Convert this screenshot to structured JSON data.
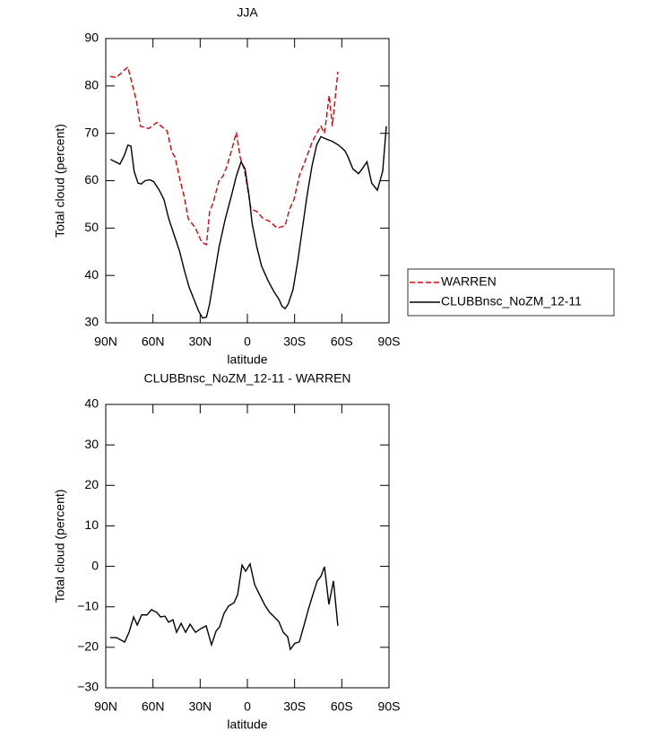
{
  "chart_data": [
    {
      "type": "line",
      "title": "JJA",
      "xlabel": "latitude",
      "ylabel": "Total cloud (percent)",
      "xlim": [
        90,
        -90
      ],
      "xticks": [
        {
          "value": 90,
          "label": "90N"
        },
        {
          "value": 60,
          "label": "60N"
        },
        {
          "value": 30,
          "label": "30N"
        },
        0,
        {
          "value": -30,
          "label": "30S"
        },
        {
          "value": -60,
          "label": "60S"
        },
        {
          "value": -90,
          "label": "90S"
        }
      ],
      "ylim": [
        30,
        90
      ],
      "yticks": [
        30,
        40,
        50,
        60,
        70,
        80,
        90
      ],
      "legend": "right",
      "series": [
        {
          "name": "WARREN",
          "color": "#e00000",
          "linestyle": "dashed",
          "x": [
            87.2,
            83.2,
            76,
            70.6,
            68,
            62.7,
            57.5,
            53,
            51,
            48,
            46,
            42.7,
            40.4,
            37.6,
            33,
            29,
            26,
            24,
            21.6,
            18,
            15.4,
            13,
            10,
            7,
            4.6,
            1.7,
            -2.3,
            -6,
            -10,
            -13.7,
            -19,
            -24,
            -26.8,
            -29.6,
            -33,
            -36.5,
            -41,
            -44,
            -46.7,
            -49,
            -52,
            -54,
            -57.5
          ],
          "values": [
            82,
            81.8,
            84,
            77,
            71.5,
            71,
            72.3,
            71,
            70.5,
            66,
            65,
            60,
            57,
            52,
            50,
            47,
            46.5,
            53.5,
            55.5,
            60,
            61,
            63,
            66.5,
            70.2,
            65,
            62,
            54,
            53.5,
            52,
            51.5,
            50,
            50.5,
            54,
            56,
            61,
            64,
            68,
            70,
            71.5,
            70,
            78,
            71.5,
            83
          ]
        },
        {
          "name": "CLUBBnsc_NoZM_12-11",
          "color": "#000000",
          "linestyle": "solid",
          "x": [
            87,
            84,
            81,
            78,
            76,
            74,
            72,
            69.5,
            67.5,
            65,
            62,
            59.5,
            56,
            53,
            50,
            46,
            43,
            40,
            37,
            34,
            31,
            28.5,
            26,
            24,
            21,
            18,
            14,
            10,
            7,
            4,
            1.5,
            -1,
            -3,
            -6,
            -9,
            -13,
            -17,
            -20,
            -22,
            -24,
            -26,
            -29,
            -32,
            -35,
            -38,
            -41,
            -44,
            -46.7,
            -50,
            -54,
            -58,
            -62,
            -64,
            -67,
            -70.6,
            -73,
            -76,
            -79,
            -82.6,
            -86,
            -88.3
          ],
          "values": [
            64.5,
            64,
            63.5,
            65.5,
            67.5,
            67.3,
            62,
            59.5,
            59.3,
            60,
            60.2,
            59.8,
            58,
            56,
            52,
            48,
            45,
            41,
            37.5,
            35,
            32.5,
            31,
            31.2,
            34,
            40,
            46,
            52,
            57,
            61,
            64,
            62.5,
            57,
            51,
            46,
            42,
            39,
            36.5,
            35,
            33.5,
            33,
            34,
            37,
            43,
            50,
            57,
            63,
            67.5,
            69.3,
            68.8,
            68.3,
            67.5,
            66.3,
            65,
            62.5,
            61.5,
            62.5,
            64,
            59.5,
            58,
            62,
            71.5
          ]
        }
      ]
    },
    {
      "type": "line",
      "title": "CLUBBnsc_NoZM_12-11 - WARREN",
      "xlabel": "latitude",
      "ylabel": "Total cloud (percent)",
      "xlim": [
        90,
        -90
      ],
      "xticks": [
        {
          "value": 90,
          "label": "90N"
        },
        {
          "value": 60,
          "label": "60N"
        },
        {
          "value": 30,
          "label": "30N"
        },
        0,
        {
          "value": -30,
          "label": "30S"
        },
        {
          "value": -60,
          "label": "60S"
        },
        {
          "value": -90,
          "label": "90S"
        }
      ],
      "ylim": [
        -30,
        40
      ],
      "yticks": [
        {
          "value": -30,
          "label": "−30"
        },
        {
          "value": -20,
          "label": "−20"
        },
        {
          "value": -10,
          "label": "−10"
        },
        0,
        10,
        20,
        30,
        40
      ],
      "series": [
        {
          "color": "#000000",
          "linestyle": "solid",
          "x": [
            87.2,
            83.2,
            78,
            75.2,
            72.3,
            70,
            67.2,
            63.8,
            60.9,
            57.5,
            55.2,
            52.4,
            50.1,
            47.3,
            45,
            42.1,
            39.3,
            36.4,
            33,
            29.6,
            26.2,
            22.8,
            19.9,
            17.6,
            14.8,
            11.9,
            8.5,
            6.2,
            3.4,
            1.1,
            -1.7,
            -4.6,
            -8,
            -11.4,
            -14.2,
            -17.1,
            -19.9,
            -22.8,
            -25.6,
            -27.3,
            -30.2,
            -33,
            -35.9,
            -38.7,
            -41.6,
            -44.4,
            -46.7,
            -49,
            -51.8,
            -54.7,
            -57.5
          ],
          "values": [
            -17.6,
            -17.6,
            -18.7,
            -16.3,
            -12.5,
            -14.5,
            -12,
            -12,
            -10.7,
            -11.4,
            -12.5,
            -12.3,
            -13.8,
            -13.2,
            -16.3,
            -14.1,
            -16.3,
            -14.3,
            -16.3,
            -15.4,
            -14.7,
            -19.4,
            -16,
            -14.9,
            -11.6,
            -9.8,
            -9,
            -7,
            0.3,
            -1.2,
            0.6,
            -4.5,
            -7.2,
            -9.8,
            -11.4,
            -12.5,
            -13.6,
            -16.3,
            -17.4,
            -20.5,
            -19,
            -18.7,
            -14.7,
            -10.7,
            -7,
            -3.6,
            -2.5,
            -0.1,
            -9.4,
            -3.6,
            -14.7
          ]
        }
      ]
    }
  ]
}
